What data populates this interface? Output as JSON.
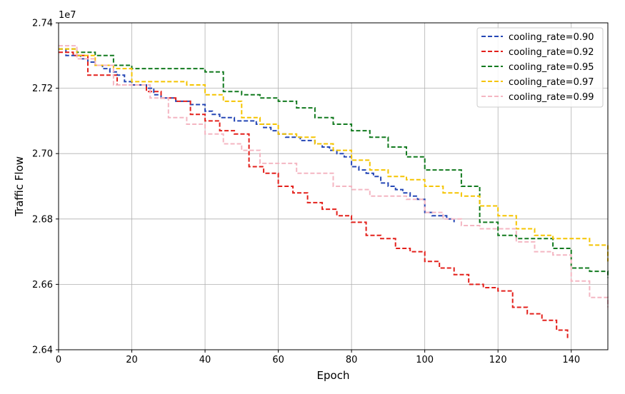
{
  "chart_data": {
    "type": "line",
    "title": "",
    "xlabel": "Epoch",
    "ylabel": "Traffic Flow",
    "offset_text": "1e7",
    "xlim": [
      0,
      150
    ],
    "ylim": [
      26400000,
      27400000
    ],
    "xticks": [
      0,
      20,
      40,
      60,
      80,
      100,
      120,
      140
    ],
    "yticks": [
      26400000,
      26600000,
      26800000,
      27000000,
      27200000,
      27400000
    ],
    "ytick_labels": [
      "2.64",
      "2.66",
      "2.68",
      "2.70",
      "2.72",
      "2.74"
    ],
    "grid": true,
    "legend_position": "top-right",
    "line_style": "dashed",
    "series": [
      {
        "name": "cooling_rate=0.90",
        "color": "#2547b5",
        "x": [
          0,
          2,
          4,
          6,
          8,
          10,
          12,
          14,
          16,
          18,
          20,
          22,
          24,
          26,
          28,
          30,
          32,
          34,
          36,
          38,
          40,
          42,
          44,
          46,
          48,
          50,
          52,
          54,
          56,
          58,
          60,
          62,
          64,
          66,
          68,
          70,
          72,
          74,
          76,
          78,
          80,
          82,
          84,
          86,
          88,
          90,
          92,
          94,
          96,
          98,
          100,
          102,
          104,
          106,
          108
        ],
        "values": [
          27320000,
          27300000,
          27300000,
          27290000,
          27280000,
          27270000,
          27260000,
          27250000,
          27240000,
          27220000,
          27210000,
          27210000,
          27200000,
          27180000,
          27170000,
          27170000,
          27160000,
          27160000,
          27150000,
          27150000,
          27130000,
          27120000,
          27110000,
          27110000,
          27100000,
          27100000,
          27100000,
          27090000,
          27080000,
          27070000,
          27060000,
          27050000,
          27050000,
          27040000,
          27040000,
          27030000,
          27020000,
          27010000,
          27000000,
          26990000,
          26960000,
          26950000,
          26940000,
          26930000,
          26910000,
          26900000,
          26890000,
          26880000,
          26870000,
          26860000,
          26820000,
          26810000,
          26810000,
          26800000,
          26790000
        ]
      },
      {
        "name": "cooling_rate=0.92",
        "color": "#e3201b",
        "x": [
          0,
          4,
          8,
          12,
          16,
          20,
          24,
          28,
          32,
          36,
          40,
          44,
          48,
          52,
          56,
          60,
          64,
          68,
          72,
          76,
          80,
          84,
          88,
          92,
          96,
          100,
          104,
          108,
          112,
          116,
          120,
          124,
          128,
          132,
          136,
          139
        ],
        "values": [
          27310000,
          27300000,
          27240000,
          27240000,
          27210000,
          27210000,
          27190000,
          27170000,
          27160000,
          27120000,
          27100000,
          27070000,
          27060000,
          26960000,
          26940000,
          26900000,
          26880000,
          26850000,
          26830000,
          26810000,
          26790000,
          26750000,
          26740000,
          26710000,
          26700000,
          26670000,
          26650000,
          26630000,
          26600000,
          26590000,
          26580000,
          26530000,
          26510000,
          26490000,
          26460000,
          26430000
        ]
      },
      {
        "name": "cooling_rate=0.95",
        "color": "#127a1f",
        "x": [
          0,
          5,
          10,
          15,
          20,
          25,
          30,
          35,
          40,
          45,
          50,
          55,
          60,
          65,
          70,
          75,
          80,
          85,
          90,
          95,
          100,
          105,
          110,
          115,
          120,
          125,
          130,
          135,
          140,
          145,
          150
        ],
        "values": [
          27320000,
          27310000,
          27300000,
          27270000,
          27260000,
          27260000,
          27260000,
          27260000,
          27250000,
          27190000,
          27180000,
          27170000,
          27160000,
          27140000,
          27110000,
          27090000,
          27070000,
          27050000,
          27020000,
          26990000,
          26950000,
          26950000,
          26900000,
          26790000,
          26750000,
          26740000,
          26740000,
          26710000,
          26650000,
          26640000,
          26620000
        ]
      },
      {
        "name": "cooling_rate=0.97",
        "color": "#f5c400",
        "x": [
          0,
          5,
          10,
          15,
          20,
          25,
          30,
          35,
          40,
          45,
          50,
          55,
          60,
          65,
          70,
          75,
          80,
          85,
          90,
          95,
          100,
          105,
          110,
          115,
          120,
          125,
          130,
          135,
          140,
          145,
          150
        ],
        "values": [
          27320000,
          27300000,
          27270000,
          27260000,
          27220000,
          27220000,
          27220000,
          27210000,
          27180000,
          27160000,
          27110000,
          27090000,
          27060000,
          27050000,
          27030000,
          27010000,
          26980000,
          26950000,
          26930000,
          26920000,
          26900000,
          26880000,
          26870000,
          26840000,
          26810000,
          26770000,
          26750000,
          26740000,
          26740000,
          26720000,
          26670000
        ]
      },
      {
        "name": "cooling_rate=0.99",
        "color": "#f4b6c2",
        "x": [
          0,
          5,
          10,
          15,
          20,
          25,
          30,
          35,
          40,
          45,
          50,
          55,
          60,
          65,
          70,
          75,
          80,
          85,
          90,
          95,
          100,
          105,
          110,
          115,
          120,
          125,
          130,
          135,
          140,
          145,
          150
        ],
        "values": [
          27330000,
          27290000,
          27270000,
          27210000,
          27210000,
          27170000,
          27110000,
          27090000,
          27060000,
          27030000,
          27010000,
          26970000,
          26970000,
          26940000,
          26940000,
          26900000,
          26890000,
          26870000,
          26870000,
          26860000,
          26820000,
          26800000,
          26780000,
          26770000,
          26770000,
          26730000,
          26700000,
          26690000,
          26610000,
          26560000,
          26530000
        ]
      }
    ]
  }
}
